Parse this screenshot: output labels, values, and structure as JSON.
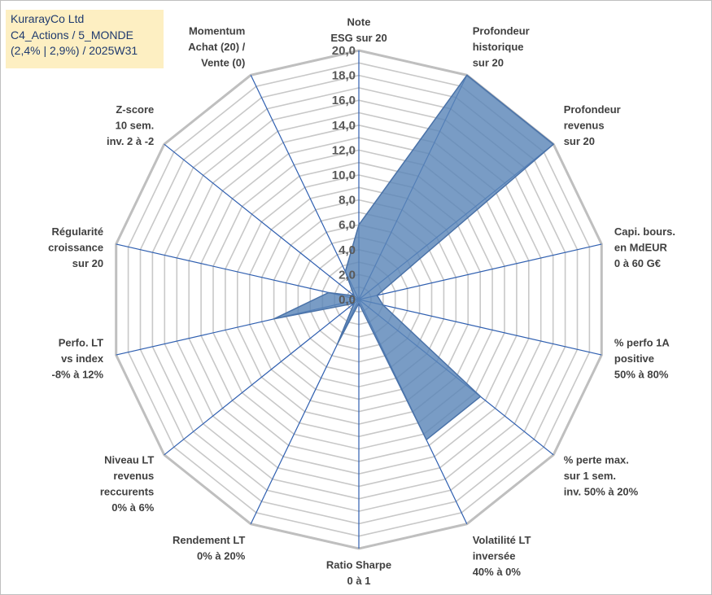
{
  "info": {
    "lines": [
      "KurarayCo Ltd",
      "C4_Actions / 5_MONDE",
      "(2,4% | 2,9%) / 2025W31"
    ]
  },
  "colors": {
    "fill": "#5b86b8",
    "stroke": "#4a72a8",
    "spoke": "#2f5fb0",
    "ring": "#c8c8c8",
    "outer_ring": "#bfbfbf",
    "info_bg": "#fdefc2",
    "info_text": "#1f3a6e"
  },
  "chart_data": {
    "type": "radar",
    "title": "",
    "rlim": [
      0,
      20
    ],
    "tick_labels": [
      "0,0",
      "2,0",
      "4,0",
      "6,0",
      "8,0",
      "10,0",
      "12,0",
      "14,0",
      "16,0",
      "18,0",
      "20,0"
    ],
    "axes": [
      {
        "label": [
          "Note",
          "ESG sur 20"
        ],
        "value": 6.0
      },
      {
        "label": [
          "Profondeur",
          "historique",
          "sur 20"
        ],
        "value": 20.0
      },
      {
        "label": [
          "Profondeur",
          "revenus",
          "sur 20"
        ],
        "value": 20.0
      },
      {
        "label": [
          "Capi. bours.",
          "en MdEUR",
          "0 à 60 G€"
        ],
        "value": 1.5
      },
      {
        "label": [
          "% perfo 1A",
          "positive",
          "50% à 80%"
        ],
        "value": 2.0
      },
      {
        "label": [
          "% perte max.",
          "sur 1 sem.",
          "inv. 50% à 20%"
        ],
        "value": 12.5
      },
      {
        "label": [
          "Volatilité LT",
          "inversée",
          "40% à 0%"
        ],
        "value": 12.5
      },
      {
        "label": [
          "Ratio Sharpe",
          "0 à 1"
        ],
        "value": 0.3
      },
      {
        "label": [
          "Rendement LT",
          "0% à 20%"
        ],
        "value": 4.0
      },
      {
        "label": [
          "Niveau LT",
          "revenus",
          "reccurents",
          "0% à 6%"
        ],
        "value": 0.5
      },
      {
        "label": [
          "Perfo. LT",
          "vs index",
          "-8% à 12%"
        ],
        "value": 7.0
      },
      {
        "label": [
          "Régularité",
          "croissance",
          "sur 20"
        ],
        "value": 2.5
      },
      {
        "label": [
          "Z-score",
          "10 sem.",
          "inv. 2 à -2"
        ],
        "value": 0.5
      },
      {
        "label": [
          "Momentum",
          "Achat (20) /",
          "Vente (0)"
        ],
        "value": 2.5
      }
    ]
  }
}
